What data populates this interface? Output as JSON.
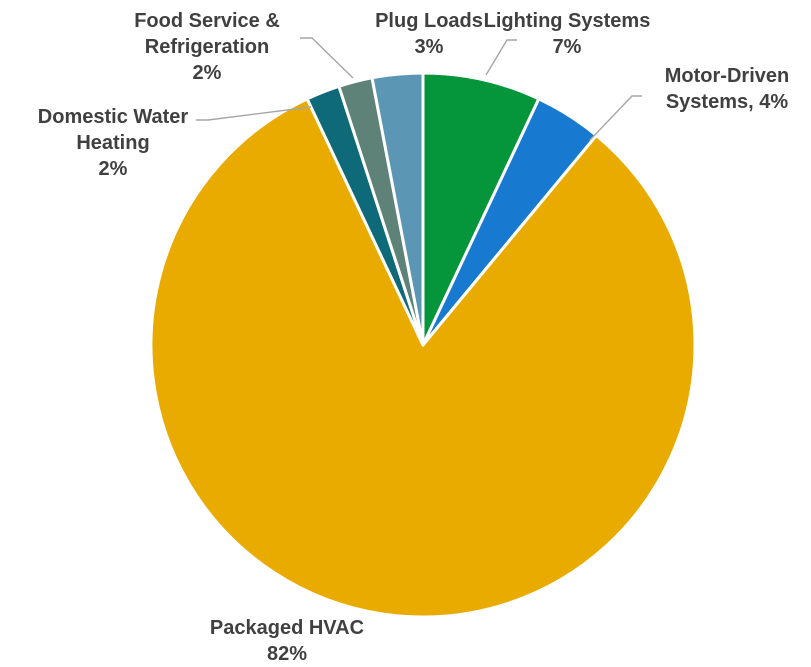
{
  "chart_data": {
    "type": "pie",
    "title": "",
    "start_angle_deg": 0,
    "direction": "clockwise",
    "legend": "none",
    "slices": [
      {
        "name": "Lighting Systems",
        "value": 7,
        "value_label": "7%",
        "color": "#05963c",
        "label_lines": [
          "Lighting Systems",
          "7%"
        ]
      },
      {
        "name": "Motor-Driven Systems",
        "value": 4,
        "value_label": "4%",
        "color": "#1879d1",
        "label_lines": [
          "Motor-Driven",
          "Systems, 4%"
        ]
      },
      {
        "name": "Packaged HVAC",
        "value": 82,
        "value_label": "82%",
        "color": "#e9ab00",
        "label_lines": [
          "Packaged HVAC",
          "82%"
        ]
      },
      {
        "name": "Domestic Water Heating",
        "value": 2,
        "value_label": "2%",
        "color": "#0e6a78",
        "label_lines": [
          "Domestic Water",
          "Heating",
          "2%"
        ]
      },
      {
        "name": "Food Service & Refrigeration",
        "value": 2,
        "value_label": "2%",
        "color": "#5e8278",
        "label_lines": [
          "Food Service &",
          "Refrigeration",
          "2%"
        ]
      },
      {
        "name": "Plug Loads",
        "value": 3,
        "value_label": "3%",
        "color": "#5b97b4",
        "label_lines": [
          "Plug Loads",
          "3%"
        ]
      }
    ]
  }
}
